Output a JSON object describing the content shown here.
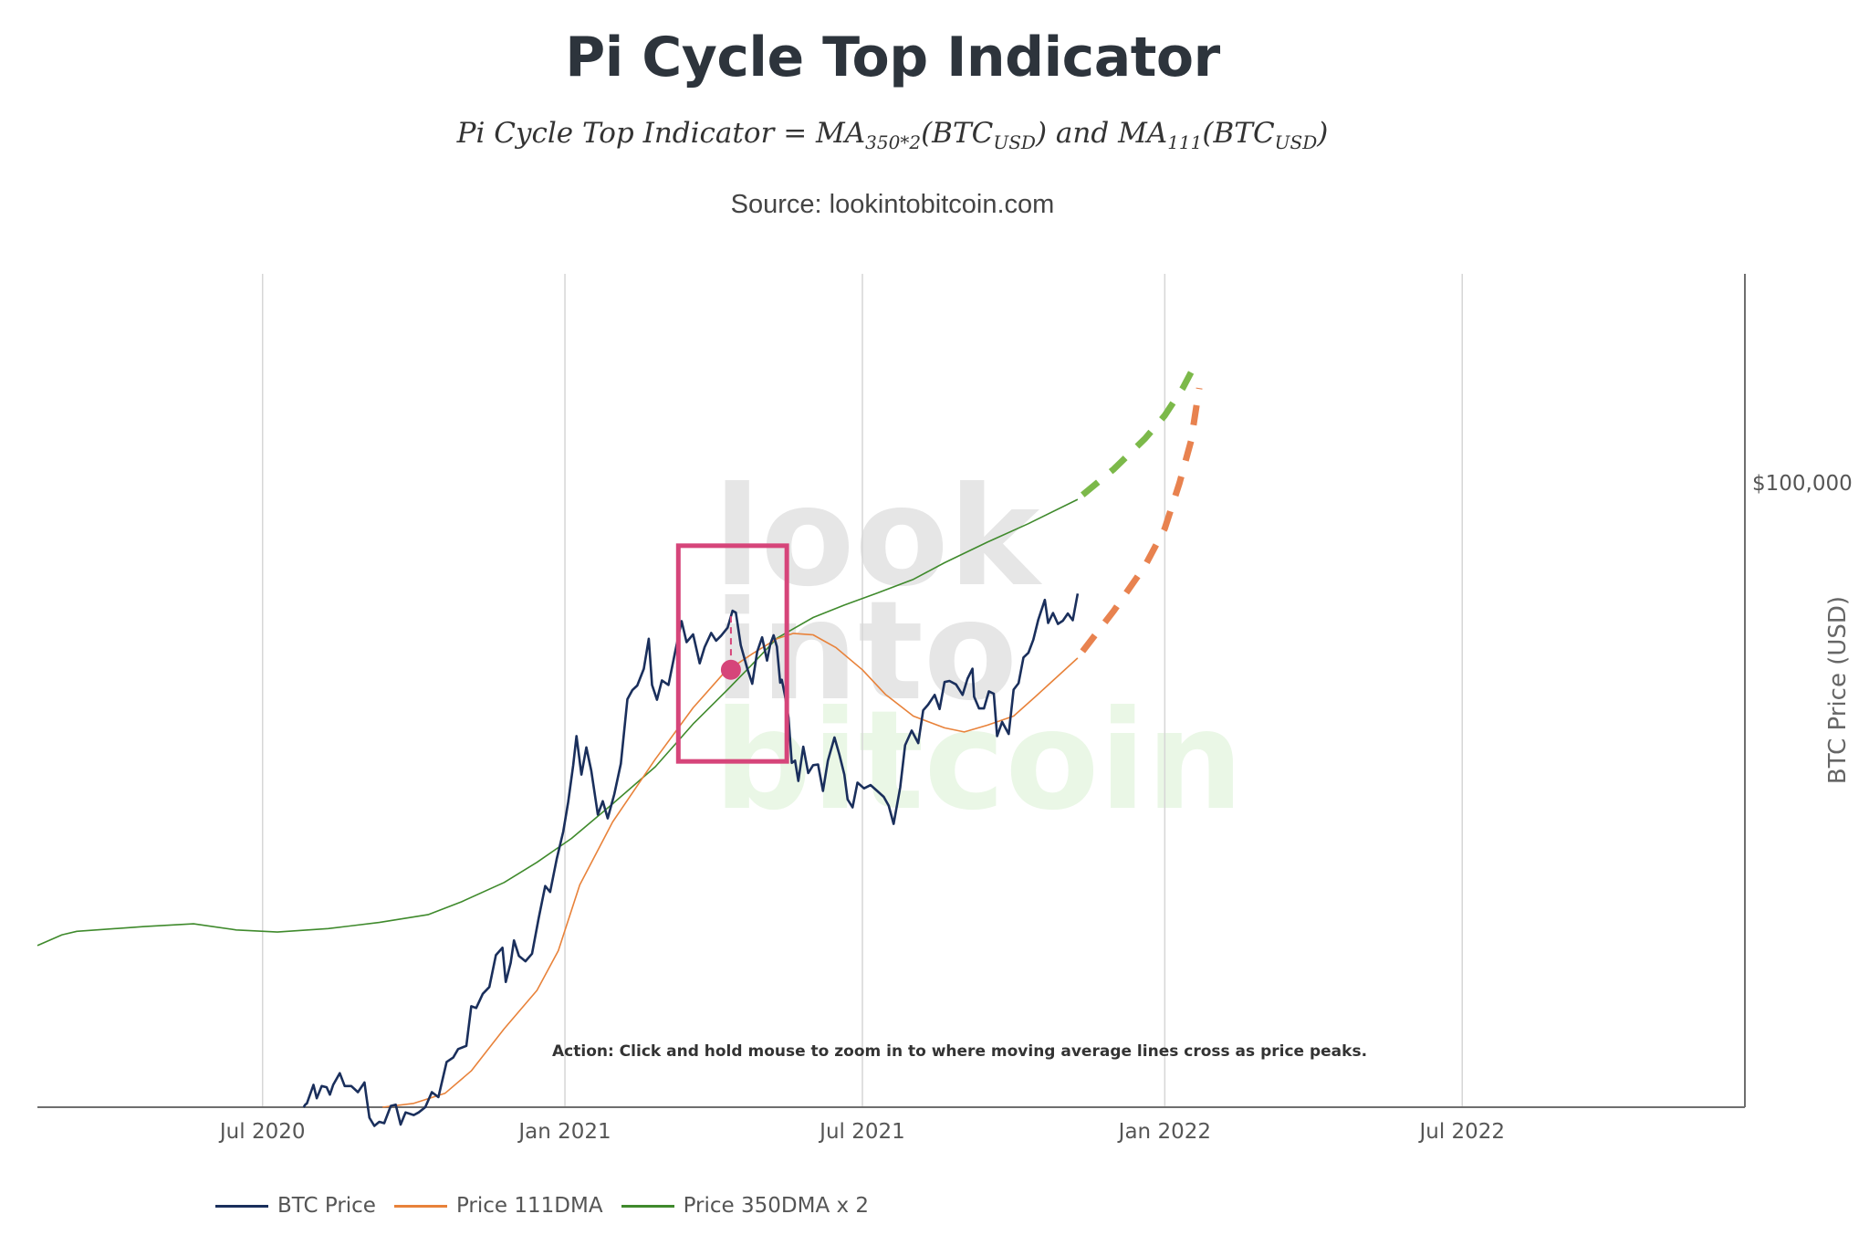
{
  "header": {
    "title": "Pi Cycle Top Indicator",
    "formula": {
      "lhs": "Pi Cycle Top Indicator = ",
      "ma1": "MA",
      "ma1_sub": "350*2",
      "arg1": "(BTC",
      "arg1_sub": "USD",
      "close1": ")",
      "and": " and ",
      "ma2": "MA",
      "ma2_sub": "111",
      "arg2": "(BTC",
      "arg2_sub": "USD",
      "close2": ")"
    },
    "source": "Source: lookintobitcoin.com"
  },
  "colors": {
    "btc_price": "#1a2f5c",
    "ma111": "#e8823a",
    "ma350x2": "#3f8a2c",
    "ma350x2_projection": "#7cb94a",
    "ma111_projection": "#e8824f",
    "highlight": "#d6457a",
    "grid": "#d6d6d6",
    "axis": "#6e6e6e",
    "watermark_grey": "#e6e6e6",
    "watermark_green": "#eaf7e6"
  },
  "watermark": {
    "line1": "look",
    "line2": "into",
    "line3": "bitcoin"
  },
  "chart_data": {
    "type": "line",
    "title": "Pi Cycle Top Indicator",
    "xlabel": "",
    "ylabel": "BTC Price (USD)",
    "x_range": [
      "2020-02-15",
      "2022-12-20"
    ],
    "y_scale": "log",
    "y_range": [
      10900,
      210000
    ],
    "grid": {
      "x": true,
      "y": false
    },
    "x_ticks": [
      {
        "date": "2020-07-01",
        "label": "Jul 2020"
      },
      {
        "date": "2021-01-01",
        "label": "Jan 2021"
      },
      {
        "date": "2021-07-01",
        "label": "Jul 2021"
      },
      {
        "date": "2022-01-01",
        "label": "Jan 2022"
      },
      {
        "date": "2022-07-01",
        "label": "Jul 2022"
      }
    ],
    "y_ticks": [
      {
        "value": 100000,
        "label": "$100,000"
      }
    ],
    "legend_position": "bottom-left",
    "series": [
      {
        "name": "BTC Price",
        "style": "solid",
        "points": [
          [
            "2020-07-26",
            10900
          ],
          [
            "2020-07-27",
            11000
          ],
          [
            "2020-07-28",
            11050
          ],
          [
            "2020-08-01",
            11800
          ],
          [
            "2020-08-03",
            11250
          ],
          [
            "2020-08-06",
            11750
          ],
          [
            "2020-08-09",
            11700
          ],
          [
            "2020-08-11",
            11400
          ],
          [
            "2020-08-13",
            11800
          ],
          [
            "2020-08-17",
            12300
          ],
          [
            "2020-08-20",
            11750
          ],
          [
            "2020-08-24",
            11750
          ],
          [
            "2020-08-28",
            11500
          ],
          [
            "2020-09-01",
            11900
          ],
          [
            "2020-09-02",
            11400
          ],
          [
            "2020-09-04",
            10500
          ],
          [
            "2020-09-07",
            10200
          ],
          [
            "2020-09-10",
            10350
          ],
          [
            "2020-09-13",
            10300
          ],
          [
            "2020-09-17",
            10950
          ],
          [
            "2020-09-20",
            11000
          ],
          [
            "2020-09-23",
            10250
          ],
          [
            "2020-09-26",
            10700
          ],
          [
            "2020-10-01",
            10600
          ],
          [
            "2020-10-04",
            10700
          ],
          [
            "2020-10-08",
            10900
          ],
          [
            "2020-10-12",
            11500
          ],
          [
            "2020-10-16",
            11300
          ],
          [
            "2020-10-21",
            12800
          ],
          [
            "2020-10-25",
            13000
          ],
          [
            "2020-10-28",
            13400
          ],
          [
            "2020-11-02",
            13550
          ],
          [
            "2020-11-05",
            15600
          ],
          [
            "2020-11-08",
            15500
          ],
          [
            "2020-11-12",
            16300
          ],
          [
            "2020-11-16",
            16700
          ],
          [
            "2020-11-20",
            18700
          ],
          [
            "2020-11-24",
            19200
          ],
          [
            "2020-11-26",
            17000
          ],
          [
            "2020-11-29",
            18200
          ],
          [
            "2020-12-01",
            19700
          ],
          [
            "2020-12-04",
            18650
          ],
          [
            "2020-12-08",
            18300
          ],
          [
            "2020-12-12",
            18800
          ],
          [
            "2020-12-16",
            21300
          ],
          [
            "2020-12-20",
            23900
          ],
          [
            "2020-12-23",
            23400
          ],
          [
            "2020-12-27",
            26300
          ],
          [
            "2020-12-31",
            29000
          ],
          [
            "2021-01-03",
            32200
          ],
          [
            "2021-01-06",
            36700
          ],
          [
            "2021-01-08",
            40700
          ],
          [
            "2021-01-11",
            35500
          ],
          [
            "2021-01-14",
            39100
          ],
          [
            "2021-01-17",
            36000
          ],
          [
            "2021-01-21",
            30800
          ],
          [
            "2021-01-24",
            32300
          ],
          [
            "2021-01-27",
            30400
          ],
          [
            "2021-01-31",
            33100
          ],
          [
            "2021-02-04",
            36900
          ],
          [
            "2021-02-08",
            46400
          ],
          [
            "2021-02-11",
            47900
          ],
          [
            "2021-02-14",
            48700
          ],
          [
            "2021-02-18",
            51700
          ],
          [
            "2021-02-21",
            57500
          ],
          [
            "2021-02-23",
            48800
          ],
          [
            "2021-02-26",
            46300
          ],
          [
            "2021-03-01",
            49600
          ],
          [
            "2021-03-05",
            48800
          ],
          [
            "2021-03-09",
            54800
          ],
          [
            "2021-03-13",
            61200
          ],
          [
            "2021-03-16",
            56800
          ],
          [
            "2021-03-20",
            58400
          ],
          [
            "2021-03-24",
            52700
          ],
          [
            "2021-03-27",
            55800
          ],
          [
            "2021-03-31",
            58700
          ],
          [
            "2021-04-03",
            57100
          ],
          [
            "2021-04-06",
            58100
          ],
          [
            "2021-04-10",
            59800
          ],
          [
            "2021-04-13",
            63500
          ],
          [
            "2021-04-15",
            63100
          ],
          [
            "2021-04-18",
            56200
          ],
          [
            "2021-04-22",
            51700
          ],
          [
            "2021-04-25",
            49000
          ],
          [
            "2021-04-28",
            54900
          ],
          [
            "2021-05-01",
            57800
          ],
          [
            "2021-05-04",
            53200
          ],
          [
            "2021-05-06",
            56400
          ],
          [
            "2021-05-08",
            58200
          ],
          [
            "2021-05-10",
            55900
          ],
          [
            "2021-05-12",
            49200
          ],
          [
            "2021-05-13",
            49700
          ],
          [
            "2021-05-15",
            46800
          ],
          [
            "2021-05-17",
            43500
          ],
          [
            "2021-05-19",
            37000
          ],
          [
            "2021-05-21",
            37300
          ],
          [
            "2021-05-23",
            34700
          ],
          [
            "2021-05-26",
            39200
          ],
          [
            "2021-05-29",
            35700
          ],
          [
            "2021-06-01",
            36700
          ],
          [
            "2021-06-04",
            36800
          ],
          [
            "2021-06-07",
            33500
          ],
          [
            "2021-06-10",
            37300
          ],
          [
            "2021-06-14",
            40500
          ],
          [
            "2021-06-17",
            38100
          ],
          [
            "2021-06-20",
            35500
          ],
          [
            "2021-06-22",
            32500
          ],
          [
            "2021-06-25",
            31600
          ],
          [
            "2021-06-28",
            34500
          ],
          [
            "2021-07-02",
            33800
          ],
          [
            "2021-07-06",
            34200
          ],
          [
            "2021-07-10",
            33500
          ],
          [
            "2021-07-14",
            32800
          ],
          [
            "2021-07-17",
            31800
          ],
          [
            "2021-07-20",
            29800
          ],
          [
            "2021-07-24",
            33900
          ],
          [
            "2021-07-27",
            39400
          ],
          [
            "2021-07-31",
            41500
          ],
          [
            "2021-08-04",
            39700
          ],
          [
            "2021-08-07",
            44600
          ],
          [
            "2021-08-10",
            45500
          ],
          [
            "2021-08-14",
            47100
          ],
          [
            "2021-08-17",
            44800
          ],
          [
            "2021-08-20",
            49300
          ],
          [
            "2021-08-23",
            49500
          ],
          [
            "2021-08-27",
            48900
          ],
          [
            "2021-08-31",
            47100
          ],
          [
            "2021-09-03",
            49900
          ],
          [
            "2021-09-06",
            51700
          ],
          [
            "2021-09-07",
            46800
          ],
          [
            "2021-09-10",
            44900
          ],
          [
            "2021-09-13",
            44900
          ],
          [
            "2021-09-16",
            47700
          ],
          [
            "2021-09-19",
            47300
          ],
          [
            "2021-09-21",
            40700
          ],
          [
            "2021-09-24",
            42800
          ],
          [
            "2021-09-28",
            41000
          ],
          [
            "2021-10-01",
            48000
          ],
          [
            "2021-10-04",
            49100
          ],
          [
            "2021-10-07",
            53800
          ],
          [
            "2021-10-10",
            54700
          ],
          [
            "2021-10-13",
            57300
          ],
          [
            "2021-10-16",
            61500
          ],
          [
            "2021-10-20",
            66000
          ],
          [
            "2021-10-22",
            60800
          ],
          [
            "2021-10-25",
            63000
          ],
          [
            "2021-10-28",
            60600
          ],
          [
            "2021-10-31",
            61300
          ],
          [
            "2021-11-03",
            62900
          ],
          [
            "2021-11-06",
            61400
          ],
          [
            "2021-11-09",
            67500
          ]
        ]
      },
      {
        "name": "Price 111DMA",
        "style": "solid",
        "points": [
          [
            "2020-09-12",
            10900
          ],
          [
            "2020-10-01",
            11050
          ],
          [
            "2020-10-20",
            11450
          ],
          [
            "2020-11-05",
            12400
          ],
          [
            "2020-11-25",
            14400
          ],
          [
            "2020-12-15",
            16500
          ],
          [
            "2020-12-28",
            19000
          ],
          [
            "2021-01-10",
            24000
          ],
          [
            "2021-01-30",
            30000
          ],
          [
            "2021-02-25",
            37500
          ],
          [
            "2021-03-20",
            45000
          ],
          [
            "2021-04-08",
            51000
          ],
          [
            "2021-04-25",
            54500
          ],
          [
            "2021-05-10",
            57500
          ],
          [
            "2021-05-20",
            58600
          ],
          [
            "2021-06-01",
            58300
          ],
          [
            "2021-06-15",
            55700
          ],
          [
            "2021-07-01",
            51500
          ],
          [
            "2021-07-15",
            47200
          ],
          [
            "2021-08-01",
            43700
          ],
          [
            "2021-08-20",
            41900
          ],
          [
            "2021-09-01",
            41300
          ],
          [
            "2021-09-15",
            42300
          ],
          [
            "2021-10-01",
            43700
          ],
          [
            "2021-10-15",
            47000
          ],
          [
            "2021-11-09",
            53700
          ]
        ]
      },
      {
        "name": "Price 350DMA x 2",
        "style": "solid",
        "points": [
          [
            "2020-02-15",
            19350
          ],
          [
            "2020-03-01",
            20100
          ],
          [
            "2020-03-10",
            20350
          ],
          [
            "2020-04-20",
            20700
          ],
          [
            "2020-05-20",
            20900
          ],
          [
            "2020-06-15",
            20450
          ],
          [
            "2020-07-10",
            20300
          ],
          [
            "2020-08-10",
            20550
          ],
          [
            "2020-09-10",
            21000
          ],
          [
            "2020-10-10",
            21600
          ],
          [
            "2020-10-30",
            22600
          ],
          [
            "2020-11-25",
            24200
          ],
          [
            "2020-12-15",
            26000
          ],
          [
            "2021-01-05",
            28300
          ],
          [
            "2021-01-30",
            32000
          ],
          [
            "2021-02-25",
            36500
          ],
          [
            "2021-03-20",
            42500
          ],
          [
            "2021-04-10",
            48000
          ],
          [
            "2021-04-25",
            52500
          ],
          [
            "2021-05-10",
            57600
          ],
          [
            "2021-06-01",
            62000
          ],
          [
            "2021-06-20",
            64800
          ],
          [
            "2021-07-10",
            67600
          ],
          [
            "2021-08-01",
            71000
          ],
          [
            "2021-08-20",
            75300
          ],
          [
            "2021-09-15",
            81000
          ],
          [
            "2021-10-10",
            86500
          ],
          [
            "2021-11-09",
            94300
          ]
        ]
      },
      {
        "name": "Price 350DMA x 2 (projection)",
        "style": "dashed",
        "points": [
          [
            "2021-11-12",
            95800
          ],
          [
            "2021-12-01",
            105000
          ],
          [
            "2021-12-20",
            117000
          ],
          [
            "2022-01-01",
            127000
          ],
          [
            "2022-01-12",
            140000
          ],
          [
            "2022-01-17",
            148000
          ]
        ]
      },
      {
        "name": "Price 111DMA (projection)",
        "style": "dashed",
        "points": [
          [
            "2021-11-12",
            55000
          ],
          [
            "2021-12-01",
            63500
          ],
          [
            "2021-12-20",
            74500
          ],
          [
            "2022-01-01",
            85000
          ],
          [
            "2022-01-10",
            100000
          ],
          [
            "2022-01-17",
            116000
          ],
          [
            "2022-01-22",
            140000
          ]
        ]
      }
    ],
    "highlights": {
      "box": {
        "x_range": [
          "2021-03-11",
          "2021-05-16"
        ],
        "y_range": [
          37200,
          80000
        ]
      },
      "crossover_point": {
        "date": "2021-04-12",
        "value": 51500,
        "price_peak": 63500
      }
    },
    "annotation": "Action: Click and hold mouse to zoom in to where moving average lines cross as price peaks.",
    "legend": [
      {
        "label": "BTC Price",
        "color_key": "btc_price"
      },
      {
        "label": "Price 111DMA",
        "color_key": "ma111"
      },
      {
        "label": "Price 350DMA x 2",
        "color_key": "ma350x2"
      }
    ]
  }
}
